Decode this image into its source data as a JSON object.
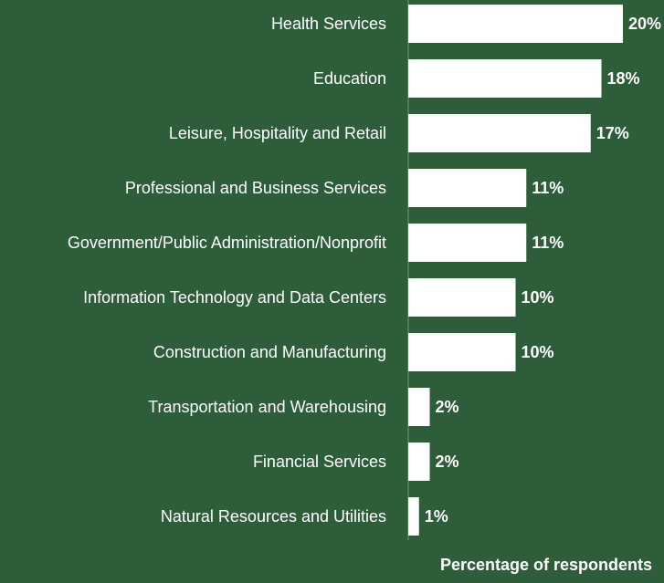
{
  "chart_data": {
    "type": "bar",
    "orientation": "horizontal",
    "x_label": "Percentage of respondents",
    "categories": [
      "Health Services",
      "Education",
      "Leisure, Hospitality and Retail",
      "Professional and Business Services",
      "Government/Public Administration/Nonprofit",
      "Information Technology and Data Centers",
      "Construction and Manufacturing",
      "Transportation and Warehousing",
      "Financial Services",
      "Natural Resources and Utilities"
    ],
    "values": [
      20,
      18,
      17,
      11,
      11,
      10,
      10,
      2,
      2,
      1
    ],
    "value_labels": [
      "20%",
      "18%",
      "17%",
      "11%",
      "11%",
      "10%",
      "10%",
      "2%",
      "2%",
      "1%"
    ],
    "color": "#ffffff",
    "xlim": [
      0,
      20
    ]
  }
}
